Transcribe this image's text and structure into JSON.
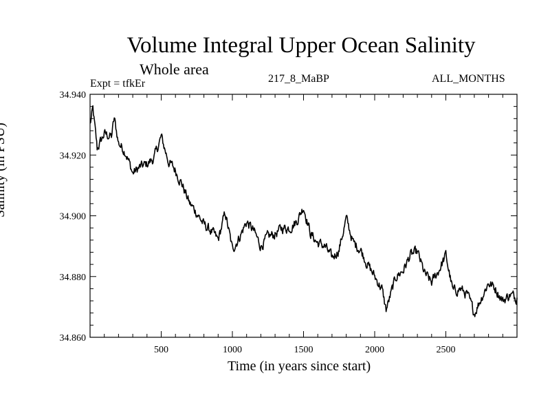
{
  "chart_data": {
    "type": "line",
    "title": "Volume Integral Upper Ocean Salinity",
    "subtitle": "Whole area",
    "experiment_label": "Expt = tfkEr",
    "run_label": "217_8_MaBP",
    "months_label": "ALL_MONTHS",
    "xlabel": "Time (in years since start)",
    "ylabel": "Salinity (in PSU)",
    "xlim": [
      0,
      3000
    ],
    "ylim": [
      34.86,
      34.94
    ],
    "xticks": [
      500,
      1000,
      1500,
      2000,
      2500
    ],
    "xtick_labels": [
      "500",
      "1000",
      "1500",
      "2000",
      "2500"
    ],
    "yticks": [
      34.86,
      34.88,
      34.9,
      34.92,
      34.94
    ],
    "ytick_labels": [
      "34.860",
      "34.880",
      "34.900",
      "34.920",
      "34.940"
    ],
    "grid": false,
    "series": [
      {
        "x": [
          0,
          20,
          50,
          100,
          150,
          170,
          200,
          250,
          300,
          350,
          400,
          450,
          500,
          550,
          600,
          650,
          700,
          750,
          800,
          850,
          900,
          950,
          1000,
          1050,
          1100,
          1150,
          1200,
          1250,
          1300,
          1350,
          1400,
          1450,
          1500,
          1550,
          1600,
          1650,
          1700,
          1750,
          1800,
          1850,
          1900,
          1950,
          2000,
          2050,
          2080,
          2100,
          2150,
          2200,
          2250,
          2300,
          2350,
          2400,
          2450,
          2500,
          2550,
          2600,
          2650,
          2700,
          2750,
          2800,
          2850,
          2900,
          2950,
          3000
        ],
        "y": [
          34.93,
          34.935,
          34.922,
          34.927,
          34.926,
          34.932,
          34.924,
          34.921,
          34.914,
          34.916,
          34.917,
          34.919,
          34.926,
          34.918,
          34.915,
          34.91,
          34.904,
          34.901,
          34.897,
          34.895,
          34.892,
          34.901,
          34.889,
          34.893,
          34.898,
          34.895,
          34.89,
          34.893,
          34.894,
          34.896,
          34.896,
          34.898,
          34.903,
          34.894,
          34.891,
          34.89,
          34.886,
          34.889,
          34.899,
          34.891,
          34.889,
          34.884,
          34.88,
          34.876,
          34.869,
          34.872,
          34.88,
          34.882,
          34.887,
          34.888,
          34.881,
          34.878,
          34.882,
          34.887,
          34.875,
          34.876,
          34.874,
          34.868,
          34.873,
          34.878,
          34.876,
          34.872,
          34.874,
          34.873
        ]
      }
    ]
  }
}
